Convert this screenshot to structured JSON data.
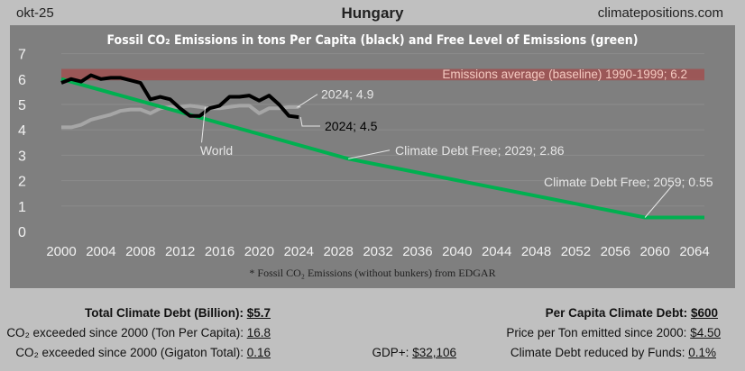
{
  "header": {
    "date": "okt-25",
    "country": "Hungary",
    "site": "climatepositions.com"
  },
  "chart_data": {
    "type": "line",
    "title": "Fossil CO₂ Emissions in tons Per Capita (black) and Free Level of Emissions (green)",
    "footnote": "* Fossil CO₂ Emissions (without bunkers) from EDGAR",
    "xlim": [
      2000,
      2065
    ],
    "ylim": [
      0,
      7
    ],
    "x_ticks": [
      2000,
      2004,
      2008,
      2012,
      2016,
      2020,
      2024,
      2028,
      2032,
      2036,
      2040,
      2044,
      2048,
      2052,
      2056,
      2060,
      2064
    ],
    "y_ticks": [
      0,
      1,
      2,
      3,
      4,
      5,
      6,
      7
    ],
    "grid": true,
    "baseline": {
      "label": "Emissions average (baseline) 1990-1999; 6.2",
      "value": 6.2,
      "color": "#a05050"
    },
    "series": [
      {
        "name": "Hungary",
        "color": "#000000",
        "x": [
          2000,
          2001,
          2002,
          2003,
          2004,
          2005,
          2006,
          2007,
          2008,
          2009,
          2010,
          2011,
          2012,
          2013,
          2014,
          2015,
          2016,
          2017,
          2018,
          2019,
          2020,
          2021,
          2022,
          2023,
          2024
        ],
        "y": [
          5.85,
          6.0,
          5.9,
          6.15,
          6.0,
          6.05,
          6.05,
          5.95,
          5.85,
          5.2,
          5.3,
          5.2,
          4.85,
          4.55,
          4.55,
          4.85,
          4.95,
          5.3,
          5.3,
          5.35,
          5.15,
          5.35,
          5.0,
          4.55,
          4.5
        ]
      },
      {
        "name": "World",
        "color": "#a6a6a6",
        "x": [
          2000,
          2001,
          2002,
          2003,
          2004,
          2005,
          2006,
          2007,
          2008,
          2009,
          2010,
          2011,
          2012,
          2013,
          2014,
          2015,
          2016,
          2017,
          2018,
          2019,
          2020,
          2021,
          2022,
          2023,
          2024
        ],
        "y": [
          4.1,
          4.1,
          4.2,
          4.4,
          4.5,
          4.6,
          4.75,
          4.8,
          4.8,
          4.65,
          4.85,
          4.9,
          4.9,
          4.95,
          4.9,
          4.85,
          4.85,
          4.9,
          4.95,
          4.95,
          4.65,
          4.85,
          4.85,
          4.9,
          4.9
        ]
      },
      {
        "name": "Free Level",
        "color": "#00b050",
        "x": [
          2000,
          2029,
          2059,
          2065
        ],
        "y": [
          6.0,
          2.86,
          0.55,
          0.55
        ]
      }
    ],
    "annotations": [
      {
        "text": "2024; 4.9",
        "x": 2024,
        "y": 4.9
      },
      {
        "text": "2024; 4.5",
        "x": 2024,
        "y": 4.5
      },
      {
        "text": "World",
        "x": 2014,
        "y": 4.9
      },
      {
        "text": "Climate Debt Free; 2029; 2.86",
        "x": 2029,
        "y": 2.86
      },
      {
        "text": "Climate Debt Free; 2059; 0.55",
        "x": 2059,
        "y": 0.55
      }
    ]
  },
  "stats": {
    "total_label": "Total Climate Debt (Billion):",
    "total_value": "$5.7",
    "exceed_pc_label": "CO₂ exceeded since 2000 (Ton Per Capita):",
    "exceed_pc_value": "16.8",
    "exceed_gt_label": "CO₂ exceeded since 2000 (Gigaton Total):",
    "exceed_gt_value": "0.16",
    "gdp_label": "GDP+:",
    "gdp_value": "$32,106",
    "per_capita_label": "Per Capita Climate Debt:",
    "per_capita_value": "$600",
    "price_label": "Price per Ton emitted since 2000:",
    "price_value": "$4.50",
    "funds_label": "Climate Debt reduced by Funds:",
    "funds_value": "0.1%"
  }
}
